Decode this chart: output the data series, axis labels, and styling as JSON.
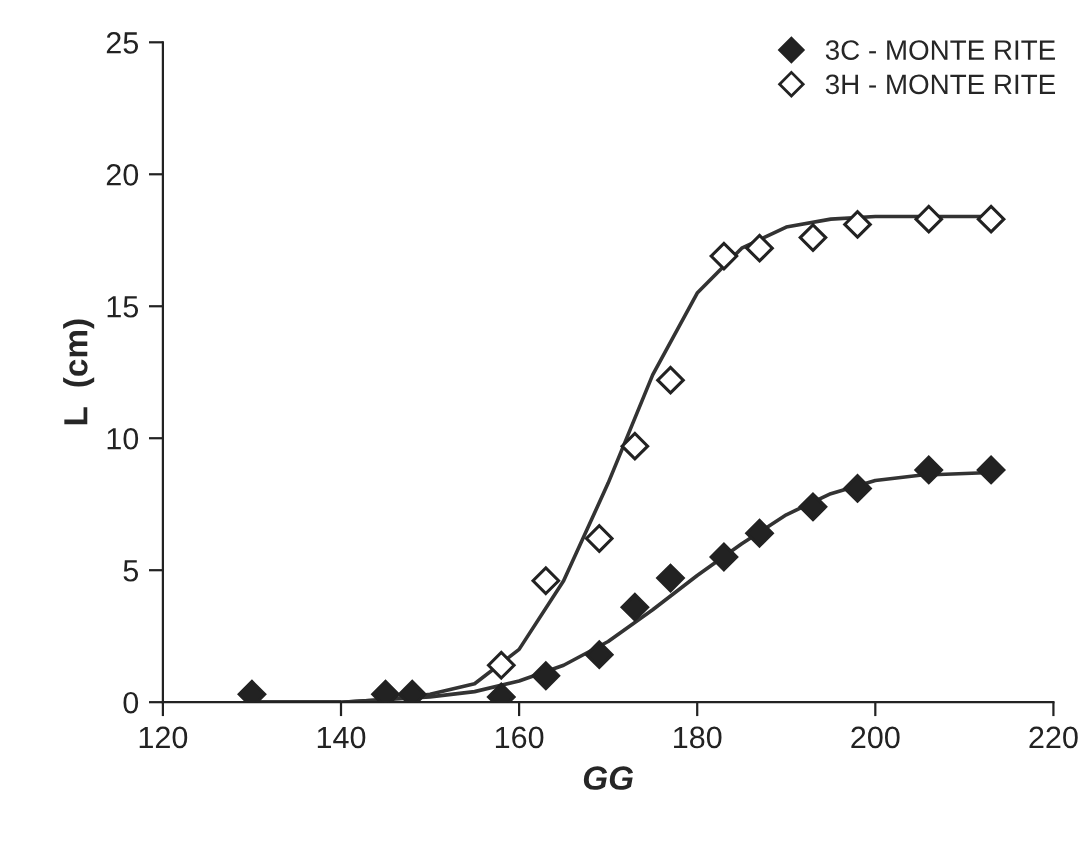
{
  "chart_data": {
    "type": "scatter",
    "xlabel": "GG",
    "ylabel": "L  (cm)",
    "xlim": [
      120,
      220
    ],
    "xticks": [
      120,
      140,
      160,
      180,
      200,
      220
    ],
    "ylim": [
      0,
      25
    ],
    "yticks": [
      0,
      5,
      10,
      15,
      20,
      25
    ],
    "grid": false,
    "legend": "top right",
    "series": [
      {
        "name": "3C - MONTE RITE",
        "color": "#222222",
        "marker": "diamond",
        "x": [
          130,
          145,
          148,
          158,
          163,
          169,
          173,
          177,
          183,
          187,
          193,
          198,
          206,
          213
        ],
        "values": [
          0.3,
          0.3,
          0.3,
          0.2,
          1.0,
          1.8,
          3.6,
          4.7,
          5.5,
          6.4,
          7.4,
          8.1,
          8.8,
          8.8
        ]
      },
      {
        "name": "3H - MONTE RITE",
        "color": "#ffffff",
        "marker": "diamond",
        "x": [
          158,
          163,
          169,
          173,
          177,
          183,
          187,
          193,
          198,
          206,
          213
        ],
        "values": [
          1.4,
          4.6,
          6.2,
          9.7,
          12.2,
          16.9,
          17.2,
          17.6,
          18.1,
          18.3,
          18.3
        ]
      },
      {
        "type": "line",
        "color": "#333333",
        "marker": "none",
        "x": [
          130,
          140,
          145,
          150,
          155,
          160,
          165,
          170,
          175,
          180,
          185,
          190,
          195,
          200,
          213
        ],
        "values": [
          0,
          0,
          0.1,
          0.3,
          0.7,
          2.0,
          4.6,
          8.3,
          12.4,
          15.5,
          17.2,
          18.0,
          18.3,
          18.4,
          18.4
        ]
      },
      {
        "type": "line",
        "color": "#333333",
        "marker": "none",
        "x": [
          130,
          140,
          150,
          155,
          160,
          165,
          170,
          175,
          180,
          185,
          190,
          195,
          200,
          205,
          213
        ],
        "values": [
          0,
          0,
          0.2,
          0.4,
          0.8,
          1.4,
          2.3,
          3.5,
          4.8,
          6.0,
          7.1,
          7.9,
          8.4,
          8.6,
          8.7
        ]
      }
    ]
  }
}
